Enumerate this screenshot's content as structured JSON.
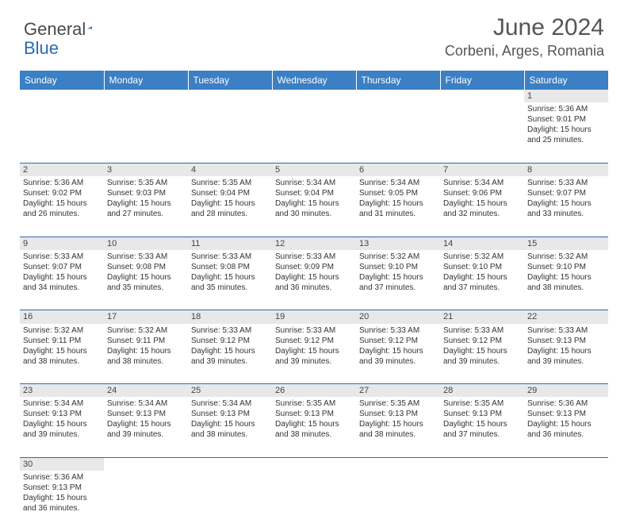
{
  "brand": {
    "part1": "General",
    "part2": "Blue"
  },
  "title": "June 2024",
  "location": "Corbeni, Arges, Romania",
  "colors": {
    "header_bg": "#3b7fc4",
    "header_text": "#ffffff",
    "daynum_bg": "#e8e8e8",
    "row_divider": "#2a6bb5",
    "body_text": "#333333",
    "title_text": "#555555",
    "brand_gray": "#4a4a4a",
    "brand_blue": "#2a6bb5"
  },
  "day_headers": [
    "Sunday",
    "Monday",
    "Tuesday",
    "Wednesday",
    "Thursday",
    "Friday",
    "Saturday"
  ],
  "weeks": [
    {
      "nums": [
        "",
        "",
        "",
        "",
        "",
        "",
        "1"
      ],
      "cells": [
        null,
        null,
        null,
        null,
        null,
        null,
        {
          "sunrise": "5:36 AM",
          "sunset": "9:01 PM",
          "daylight": "15 hours and 25 minutes."
        }
      ]
    },
    {
      "nums": [
        "2",
        "3",
        "4",
        "5",
        "6",
        "7",
        "8"
      ],
      "cells": [
        {
          "sunrise": "5:36 AM",
          "sunset": "9:02 PM",
          "daylight": "15 hours and 26 minutes."
        },
        {
          "sunrise": "5:35 AM",
          "sunset": "9:03 PM",
          "daylight": "15 hours and 27 minutes."
        },
        {
          "sunrise": "5:35 AM",
          "sunset": "9:04 PM",
          "daylight": "15 hours and 28 minutes."
        },
        {
          "sunrise": "5:34 AM",
          "sunset": "9:04 PM",
          "daylight": "15 hours and 30 minutes."
        },
        {
          "sunrise": "5:34 AM",
          "sunset": "9:05 PM",
          "daylight": "15 hours and 31 minutes."
        },
        {
          "sunrise": "5:34 AM",
          "sunset": "9:06 PM",
          "daylight": "15 hours and 32 minutes."
        },
        {
          "sunrise": "5:33 AM",
          "sunset": "9:07 PM",
          "daylight": "15 hours and 33 minutes."
        }
      ]
    },
    {
      "nums": [
        "9",
        "10",
        "11",
        "12",
        "13",
        "14",
        "15"
      ],
      "cells": [
        {
          "sunrise": "5:33 AM",
          "sunset": "9:07 PM",
          "daylight": "15 hours and 34 minutes."
        },
        {
          "sunrise": "5:33 AM",
          "sunset": "9:08 PM",
          "daylight": "15 hours and 35 minutes."
        },
        {
          "sunrise": "5:33 AM",
          "sunset": "9:08 PM",
          "daylight": "15 hours and 35 minutes."
        },
        {
          "sunrise": "5:33 AM",
          "sunset": "9:09 PM",
          "daylight": "15 hours and 36 minutes."
        },
        {
          "sunrise": "5:32 AM",
          "sunset": "9:10 PM",
          "daylight": "15 hours and 37 minutes."
        },
        {
          "sunrise": "5:32 AM",
          "sunset": "9:10 PM",
          "daylight": "15 hours and 37 minutes."
        },
        {
          "sunrise": "5:32 AM",
          "sunset": "9:10 PM",
          "daylight": "15 hours and 38 minutes."
        }
      ]
    },
    {
      "nums": [
        "16",
        "17",
        "18",
        "19",
        "20",
        "21",
        "22"
      ],
      "cells": [
        {
          "sunrise": "5:32 AM",
          "sunset": "9:11 PM",
          "daylight": "15 hours and 38 minutes."
        },
        {
          "sunrise": "5:32 AM",
          "sunset": "9:11 PM",
          "daylight": "15 hours and 38 minutes."
        },
        {
          "sunrise": "5:33 AM",
          "sunset": "9:12 PM",
          "daylight": "15 hours and 39 minutes."
        },
        {
          "sunrise": "5:33 AM",
          "sunset": "9:12 PM",
          "daylight": "15 hours and 39 minutes."
        },
        {
          "sunrise": "5:33 AM",
          "sunset": "9:12 PM",
          "daylight": "15 hours and 39 minutes."
        },
        {
          "sunrise": "5:33 AM",
          "sunset": "9:12 PM",
          "daylight": "15 hours and 39 minutes."
        },
        {
          "sunrise": "5:33 AM",
          "sunset": "9:13 PM",
          "daylight": "15 hours and 39 minutes."
        }
      ]
    },
    {
      "nums": [
        "23",
        "24",
        "25",
        "26",
        "27",
        "28",
        "29"
      ],
      "cells": [
        {
          "sunrise": "5:34 AM",
          "sunset": "9:13 PM",
          "daylight": "15 hours and 39 minutes."
        },
        {
          "sunrise": "5:34 AM",
          "sunset": "9:13 PM",
          "daylight": "15 hours and 39 minutes."
        },
        {
          "sunrise": "5:34 AM",
          "sunset": "9:13 PM",
          "daylight": "15 hours and 38 minutes."
        },
        {
          "sunrise": "5:35 AM",
          "sunset": "9:13 PM",
          "daylight": "15 hours and 38 minutes."
        },
        {
          "sunrise": "5:35 AM",
          "sunset": "9:13 PM",
          "daylight": "15 hours and 38 minutes."
        },
        {
          "sunrise": "5:35 AM",
          "sunset": "9:13 PM",
          "daylight": "15 hours and 37 minutes."
        },
        {
          "sunrise": "5:36 AM",
          "sunset": "9:13 PM",
          "daylight": "15 hours and 36 minutes."
        }
      ]
    },
    {
      "nums": [
        "30",
        "",
        "",
        "",
        "",
        "",
        ""
      ],
      "cells": [
        {
          "sunrise": "5:36 AM",
          "sunset": "9:13 PM",
          "daylight": "15 hours and 36 minutes."
        },
        null,
        null,
        null,
        null,
        null,
        null
      ]
    }
  ],
  "labels": {
    "sunrise": "Sunrise: ",
    "sunset": "Sunset: ",
    "daylight": "Daylight: "
  }
}
